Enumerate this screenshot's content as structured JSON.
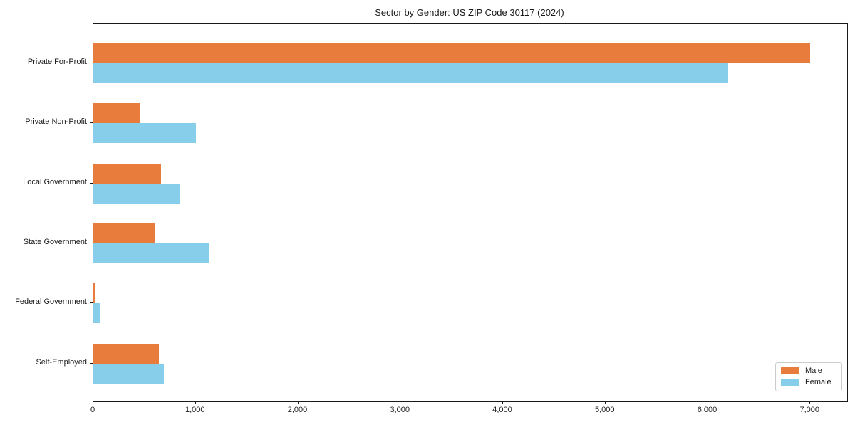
{
  "chart_data": {
    "type": "bar",
    "orientation": "horizontal",
    "title": "Sector by Gender: US ZIP Code 30117 (2024)",
    "categories": [
      "Private For-Profit",
      "Private Non-Profit",
      "Local Government",
      "State Government",
      "Federal Government",
      "Self-Employed"
    ],
    "series": [
      {
        "name": "Male",
        "color": "#E87C3C",
        "values": [
          7000,
          460,
          660,
          600,
          15,
          640
        ]
      },
      {
        "name": "Female",
        "color": "#87CEEB",
        "values": [
          6200,
          1000,
          840,
          1130,
          60,
          690
        ]
      }
    ],
    "xlabel": "",
    "ylabel": "",
    "xlim": [
      0,
      7360
    ],
    "xticks": [
      0,
      1000,
      2000,
      3000,
      4000,
      5000,
      6000,
      7000
    ],
    "xtick_labels": [
      "0",
      "1,000",
      "2,000",
      "3,000",
      "4,000",
      "5,000",
      "6,000",
      "7,000"
    ],
    "grid": false,
    "legend_position": "lower right",
    "axis_color": "#1a1a1a"
  }
}
